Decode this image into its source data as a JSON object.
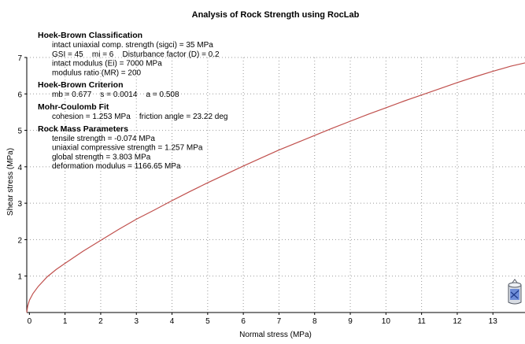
{
  "chart_data": {
    "type": "line",
    "title": "Analysis of Rock Strength using RocLab",
    "xlabel": "Normal stress (MPa)",
    "ylabel": "Shear stress (MPa)",
    "xlim": [
      -0.074,
      13.9
    ],
    "ylim": [
      0,
      7
    ],
    "xticks": [
      0,
      1,
      2,
      3,
      4,
      5,
      6,
      7,
      8,
      9,
      10,
      11,
      12,
      13
    ],
    "yticks": [
      1,
      2,
      3,
      4,
      5,
      6,
      7
    ],
    "grid": true,
    "line_color": "#c0504d",
    "series": [
      {
        "x": [
          -0.074,
          -0.05,
          0,
          0.1,
          0.25,
          0.5,
          0.75,
          1,
          1.5,
          2,
          2.5,
          3,
          3.5,
          4,
          4.5,
          5,
          5.5,
          6,
          6.5,
          7,
          7.5,
          8,
          8.5,
          9,
          9.5,
          10,
          10.5,
          11,
          11.5,
          12,
          12.5,
          13,
          13.5,
          13.9
        ],
        "y": [
          0,
          0.17,
          0.34,
          0.52,
          0.72,
          0.98,
          1.18,
          1.35,
          1.68,
          1.98,
          2.28,
          2.56,
          2.81,
          3.07,
          3.32,
          3.56,
          3.79,
          4.02,
          4.24,
          4.46,
          4.66,
          4.86,
          5.06,
          5.25,
          5.44,
          5.62,
          5.8,
          5.97,
          6.14,
          6.31,
          6.47,
          6.62,
          6.76,
          6.85
        ]
      }
    ],
    "annotations": [
      {
        "heading": "Hoek-Brown Classification",
        "lines": [
          "intact uniaxial comp. strength (sigci) = 35 MPa",
          "GSI = 45    mi = 6    Disturbance factor (D) = 0.2",
          "intact modulus (Ei) = 7000 MPa",
          "modulus ratio (MR) = 200"
        ]
      },
      {
        "heading": "Hoek-Brown Criterion",
        "lines": [
          "mb = 0.677    s = 0.0014    a = 0.508"
        ]
      },
      {
        "heading": "Mohr-Coulomb Fit",
        "lines": [
          "cohesion = 1.253 MPa    friction angle = 23.22 deg"
        ]
      },
      {
        "heading": "Rock Mass Parameters",
        "lines": [
          "tensile strength = -0.074 MPa",
          "uniaxial compressive strength = 1.257 MPa",
          "global strength = 3.803 MPa",
          "deformation modulus = 1166.65 MPa"
        ]
      }
    ]
  },
  "toolbar": {
    "icon": "rock-sample-icon"
  }
}
